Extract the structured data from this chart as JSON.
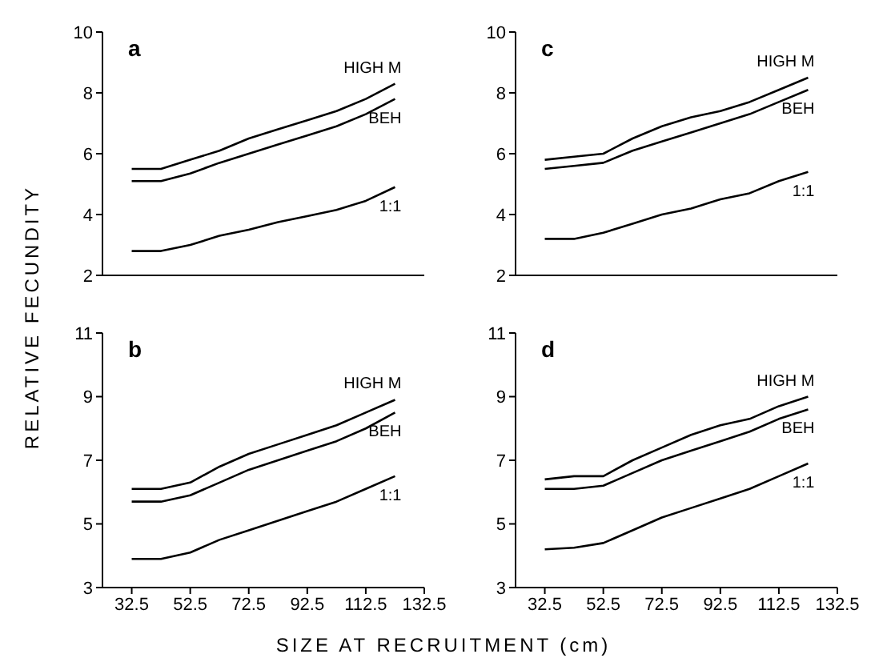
{
  "chart_data": [
    {
      "type": "line",
      "title": "a",
      "ylabel": "RELATIVE FECUNDITY",
      "x": [
        32.5,
        42.5,
        52.5,
        62.5,
        72.5,
        82.5,
        92.5,
        102.5,
        112.5,
        122.5
      ],
      "xlim": [
        22.5,
        132.5
      ],
      "xticks": [
        32.5,
        52.5,
        72.5,
        92.5,
        112.5,
        132.5
      ],
      "ylim": [
        2,
        10
      ],
      "yticks": [
        2,
        4,
        6,
        8,
        10
      ],
      "tick_labels": "y",
      "legend": false,
      "grid": false,
      "marker": "none",
      "line_style": "solid",
      "series": [
        {
          "name": "HIGH M",
          "color": "#000000",
          "values": [
            5.5,
            5.5,
            5.8,
            6.1,
            6.5,
            6.8,
            7.1,
            7.4,
            7.8,
            8.3
          ]
        },
        {
          "name": "BEH",
          "color": "#000000",
          "values": [
            5.1,
            5.1,
            5.35,
            5.7,
            6.0,
            6.3,
            6.6,
            6.9,
            7.3,
            7.8
          ]
        },
        {
          "name": "1:1",
          "color": "#000000",
          "values": [
            2.8,
            2.8,
            3.0,
            3.3,
            3.5,
            3.75,
            3.95,
            4.15,
            4.45,
            4.9
          ]
        }
      ]
    },
    {
      "type": "line",
      "title": "b",
      "xlabel": "SIZE AT RECRUITMENT (cm)",
      "x": [
        32.5,
        42.5,
        52.5,
        62.5,
        72.5,
        82.5,
        92.5,
        102.5,
        112.5,
        122.5
      ],
      "xlim": [
        22.5,
        132.5
      ],
      "xticks": [
        32.5,
        52.5,
        72.5,
        92.5,
        112.5,
        132.5
      ],
      "ylim": [
        3,
        11
      ],
      "yticks": [
        3,
        5,
        7,
        9,
        11
      ],
      "legend": false,
      "grid": false,
      "marker": "none",
      "line_style": "solid",
      "series": [
        {
          "name": "HIGH M",
          "color": "#000000",
          "values": [
            6.1,
            6.1,
            6.3,
            6.8,
            7.2,
            7.5,
            7.8,
            8.1,
            8.5,
            8.9
          ]
        },
        {
          "name": "BEH",
          "color": "#000000",
          "values": [
            5.7,
            5.7,
            5.9,
            6.3,
            6.7,
            7.0,
            7.3,
            7.6,
            8.0,
            8.5
          ]
        },
        {
          "name": "1:1",
          "color": "#000000",
          "values": [
            3.9,
            3.9,
            4.1,
            4.5,
            4.8,
            5.1,
            5.4,
            5.7,
            6.1,
            6.5
          ]
        }
      ]
    },
    {
      "type": "line",
      "title": "c",
      "x": [
        32.5,
        42.5,
        52.5,
        62.5,
        72.5,
        82.5,
        92.5,
        102.5,
        112.5,
        122.5
      ],
      "xlim": [
        22.5,
        132.5
      ],
      "xticks": [
        32.5,
        52.5,
        72.5,
        92.5,
        112.5,
        132.5
      ],
      "ylim": [
        2,
        10
      ],
      "yticks": [
        2,
        4,
        6,
        8,
        10
      ],
      "tick_labels": "y",
      "legend": false,
      "grid": false,
      "marker": "none",
      "line_style": "solid",
      "series": [
        {
          "name": "HIGH M",
          "color": "#000000",
          "values": [
            5.8,
            5.9,
            6.0,
            6.5,
            6.9,
            7.2,
            7.4,
            7.7,
            8.1,
            8.5
          ]
        },
        {
          "name": "BEH",
          "color": "#000000",
          "values": [
            5.5,
            5.6,
            5.7,
            6.1,
            6.4,
            6.7,
            7.0,
            7.3,
            7.7,
            8.1
          ]
        },
        {
          "name": "1:1",
          "color": "#000000",
          "values": [
            3.2,
            3.2,
            3.4,
            3.7,
            4.0,
            4.2,
            4.5,
            4.7,
            5.1,
            5.4
          ]
        }
      ]
    },
    {
      "type": "line",
      "title": "d",
      "x": [
        32.5,
        42.5,
        52.5,
        62.5,
        72.5,
        82.5,
        92.5,
        102.5,
        112.5,
        122.5
      ],
      "xlim": [
        22.5,
        132.5
      ],
      "xticks": [
        32.5,
        52.5,
        72.5,
        92.5,
        112.5,
        132.5
      ],
      "ylim": [
        3,
        11
      ],
      "yticks": [
        3,
        5,
        7,
        9,
        11
      ],
      "legend": false,
      "grid": false,
      "marker": "none",
      "line_style": "solid",
      "series": [
        {
          "name": "HIGH M",
          "color": "#000000",
          "values": [
            6.4,
            6.5,
            6.5,
            7.0,
            7.4,
            7.8,
            8.1,
            8.3,
            8.7,
            9.0
          ]
        },
        {
          "name": "BEH",
          "color": "#000000",
          "values": [
            6.1,
            6.1,
            6.2,
            6.6,
            7.0,
            7.3,
            7.6,
            7.9,
            8.3,
            8.6
          ]
        },
        {
          "name": "1:1",
          "color": "#000000",
          "values": [
            4.2,
            4.25,
            4.4,
            4.8,
            5.2,
            5.5,
            5.8,
            6.1,
            6.5,
            6.9
          ]
        }
      ]
    }
  ]
}
